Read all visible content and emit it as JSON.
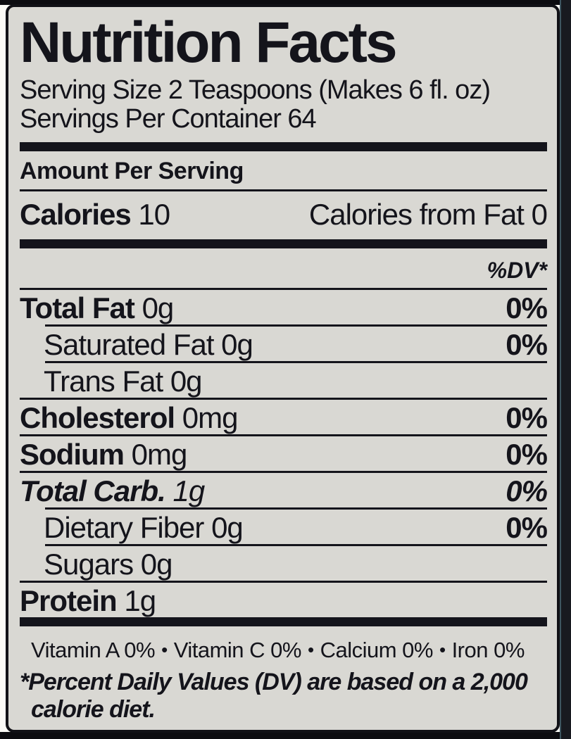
{
  "label": {
    "title": "Nutrition Facts",
    "serving_size": "Serving Size 2 Teaspoons (Makes 6 fl. oz)",
    "servings_per_container": "Servings Per Container 64",
    "amount_per_serving": "Amount Per Serving",
    "calories_label": "Calories",
    "calories_value": "10",
    "calories_from_fat": "Calories from Fat 0",
    "dv_header": "%DV*",
    "nutrients": [
      {
        "name": "Total Fat",
        "amount": "0g",
        "dv": "0%"
      },
      {
        "name": "Saturated Fat",
        "amount": "0g",
        "dv": "0%"
      },
      {
        "name": "Trans Fat",
        "amount": "0g",
        "dv": ""
      },
      {
        "name": "Cholesterol",
        "amount": "0mg",
        "dv": "0%"
      },
      {
        "name": "Sodium",
        "amount": "0mg",
        "dv": "0%"
      },
      {
        "name": "Total Carb.",
        "amount": "1g",
        "dv": "0%"
      },
      {
        "name": "Dietary Fiber",
        "amount": "0g",
        "dv": "0%"
      },
      {
        "name": "Sugars",
        "amount": "0g",
        "dv": ""
      },
      {
        "name": "Protein",
        "amount": "1g",
        "dv": ""
      }
    ],
    "bullet": "•",
    "vitamins": [
      "Vitamin A 0%",
      "Vitamin C 0%",
      "Calcium 0%",
      "Iron 0%"
    ],
    "footnote_line1": "*Percent Daily Values (DV) are based on a 2,000",
    "footnote_line2": "calorie diet."
  },
  "colors": {
    "label_background": "#d9d8d3",
    "text": "#14141b",
    "frame": "#111116"
  }
}
